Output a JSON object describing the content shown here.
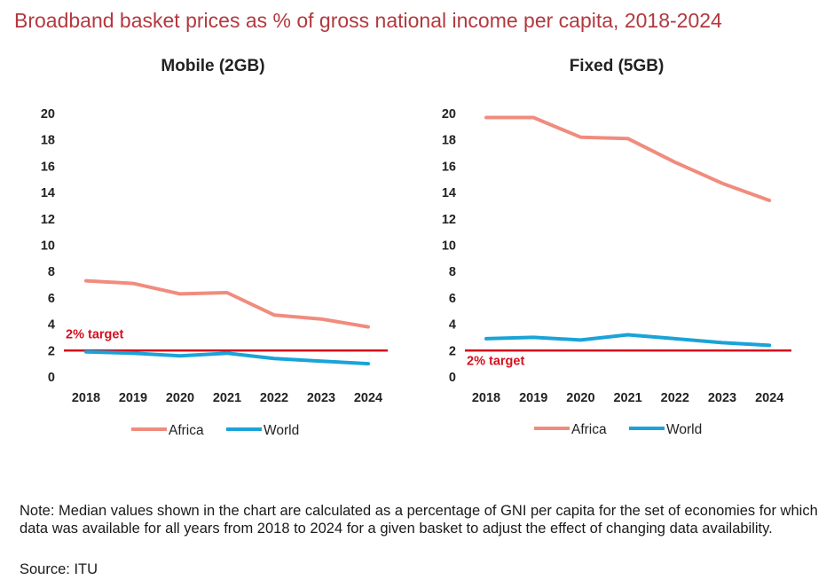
{
  "title": "Broadband basket prices as % of gross national income per capita, 2018-2024",
  "colors": {
    "africa": "#f08c7e",
    "world": "#1aa3d8",
    "target": "#d4111e",
    "title": "#b2393f"
  },
  "chart_data": [
    {
      "type": "line",
      "title": "Mobile (2GB)",
      "categories": [
        "2018",
        "2019",
        "2020",
        "2021",
        "2022",
        "2023",
        "2024"
      ],
      "series": [
        {
          "name": "Africa",
          "values": [
            7.3,
            7.1,
            6.3,
            6.4,
            4.7,
            4.4,
            3.8
          ]
        },
        {
          "name": "World",
          "values": [
            1.9,
            1.8,
            1.6,
            1.8,
            1.4,
            1.2,
            1.0
          ]
        }
      ],
      "target": {
        "label": "2% target",
        "value": 2,
        "label_position": "above"
      },
      "ylim": [
        0,
        20
      ],
      "yticks": [
        "0",
        "2",
        "4",
        "6",
        "8",
        "10",
        "12",
        "14",
        "16",
        "18",
        "20"
      ],
      "xlabel": "",
      "ylabel": "",
      "grid": false,
      "legend": "bottom"
    },
    {
      "type": "line",
      "title": "Fixed (5GB)",
      "categories": [
        "2018",
        "2019",
        "2020",
        "2021",
        "2022",
        "2023",
        "2024"
      ],
      "series": [
        {
          "name": "Africa",
          "values": [
            19.7,
            19.7,
            18.2,
            18.1,
            16.3,
            14.7,
            13.4
          ]
        },
        {
          "name": "World",
          "values": [
            2.9,
            3.0,
            2.8,
            3.2,
            2.9,
            2.6,
            2.4
          ]
        }
      ],
      "target": {
        "label": "2% target",
        "value": 2,
        "label_position": "below"
      },
      "ylim": [
        0,
        20
      ],
      "yticks": [
        "0",
        "2",
        "4",
        "6",
        "8",
        "10",
        "12",
        "14",
        "16",
        "18",
        "20"
      ],
      "xlabel": "",
      "ylabel": "",
      "grid": false,
      "legend": "bottom"
    }
  ],
  "note": "Note: Median values shown in the chart are calculated as a percentage of GNI per capita for the set of economies for which data was available for all years from 2018 to 2024 for a given basket to adjust the effect of changing data availability.",
  "source": "Source: ITU"
}
